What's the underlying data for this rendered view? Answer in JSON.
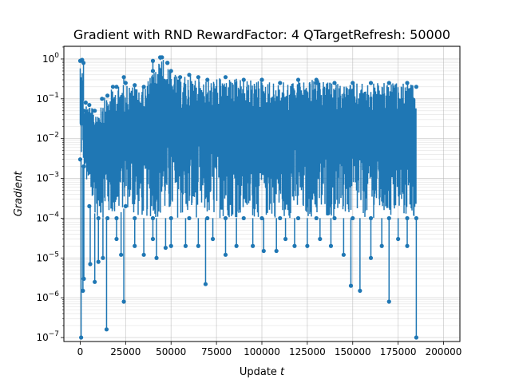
{
  "chart_data": {
    "type": "line",
    "title": "Gradient with RND RewardFactor: 4 QTargetRefresh: 50000",
    "xlabel_text": "Update ",
    "xlabel_var": "t",
    "ylabel": "Gradient",
    "xlim": [
      -9000,
      209000
    ],
    "ylim_log10": [
      -7.1,
      0.32
    ],
    "yscale": "log",
    "grid": true,
    "x_ticks": [
      0,
      25000,
      50000,
      75000,
      100000,
      125000,
      150000,
      175000,
      200000
    ],
    "x_tick_labels": [
      "0",
      "25000",
      "50000",
      "75000",
      "100000",
      "125000",
      "150000",
      "175000",
      "200000"
    ],
    "y_ticks_log10": [
      -7,
      -6,
      -5,
      -4,
      -3,
      -2,
      -1,
      0
    ],
    "y_tick_base": "10",
    "y_tick_exponents": [
      "−7",
      "−6",
      "−5",
      "−4",
      "−3",
      "−2",
      "−1",
      "0"
    ],
    "series": [
      {
        "color": "#1f77b4",
        "marker": "circle",
        "x_range": [
          0,
          185000
        ],
        "upper_envelope": {
          "x": [
            0,
            1000,
            2000,
            3000,
            5000,
            8000,
            12000,
            15000,
            18000,
            20000,
            25000,
            30000,
            35000,
            40000,
            45000,
            48000,
            50000,
            55000,
            60000,
            65000,
            70000,
            80000,
            90000,
            100000,
            110000,
            120000,
            130000,
            140000,
            150000,
            160000,
            170000,
            180000,
            185000
          ],
          "y": [
            0.9,
            0.95,
            0.05,
            0.08,
            0.07,
            0.05,
            0.1,
            0.12,
            0.2,
            0.2,
            0.25,
            0.22,
            0.2,
            0.5,
            1.1,
            0.8,
            0.5,
            0.35,
            0.4,
            0.35,
            0.3,
            0.35,
            0.3,
            0.3,
            0.25,
            0.3,
            0.3,
            0.25,
            0.25,
            0.25,
            0.25,
            0.25,
            0.2
          ]
        },
        "lower_envelope": {
          "x": [
            0,
            2000,
            5000,
            10000,
            15000,
            20000,
            25000,
            30000,
            40000,
            50000,
            60000,
            70000,
            80000,
            90000,
            100000,
            110000,
            120000,
            130000,
            140000,
            150000,
            160000,
            170000,
            180000,
            185000
          ],
          "y": [
            0.003,
            0.002,
            0.0002,
            0.0001,
            0.0001,
            0.0001,
            0.0002,
            0.0001,
            0.0001,
            0.0001,
            0.0001,
            0.0001,
            0.0001,
            0.0001,
            0.0001,
            0.0001,
            0.0001,
            0.0001,
            0.0001,
            0.0001,
            0.0001,
            0.0001,
            0.0001,
            0.0001
          ]
        },
        "spikes": [
          [
            500,
            1e-07
          ],
          [
            1500,
            1.5e-06
          ],
          [
            2000,
            3e-06
          ],
          [
            5500,
            7e-06
          ],
          [
            8000,
            2.5e-06
          ],
          [
            10000,
            8e-06
          ],
          [
            12500,
            1e-05
          ],
          [
            14500,
            1.6e-07
          ],
          [
            20000,
            3e-05
          ],
          [
            22500,
            1.2e-05
          ],
          [
            24000,
            8e-07
          ],
          [
            30000,
            2e-05
          ],
          [
            35000,
            1.2e-05
          ],
          [
            40000,
            3e-05
          ],
          [
            42000,
            1e-05
          ],
          [
            47000,
            1.8e-05
          ],
          [
            50000,
            2e-05
          ],
          [
            58000,
            2e-05
          ],
          [
            65000,
            2e-05
          ],
          [
            69000,
            2.2e-06
          ],
          [
            73000,
            3e-05
          ],
          [
            80000,
            1.2e-05
          ],
          [
            86000,
            2e-05
          ],
          [
            95000,
            2e-05
          ],
          [
            101000,
            1.5e-05
          ],
          [
            108000,
            1.5e-05
          ],
          [
            113000,
            3e-05
          ],
          [
            118000,
            2e-05
          ],
          [
            125000,
            2e-05
          ],
          [
            132000,
            3e-05
          ],
          [
            138000,
            2e-05
          ],
          [
            145000,
            1.2e-05
          ],
          [
            149000,
            2e-06
          ],
          [
            154000,
            1.5e-06
          ],
          [
            160000,
            1e-05
          ],
          [
            166000,
            2e-05
          ],
          [
            170000,
            8e-07
          ],
          [
            175000,
            3e-05
          ],
          [
            180000,
            2e-05
          ],
          [
            185000,
            1e-07
          ]
        ],
        "peaks": [
          [
            1000,
            0.95
          ],
          [
            1800,
            0.8
          ],
          [
            44000,
            1.1
          ],
          [
            40000,
            0.9
          ],
          [
            48000,
            0.8
          ],
          [
            24000,
            0.35
          ],
          [
            100000,
            0.3
          ],
          [
            130000,
            0.25
          ]
        ]
      }
    ]
  }
}
